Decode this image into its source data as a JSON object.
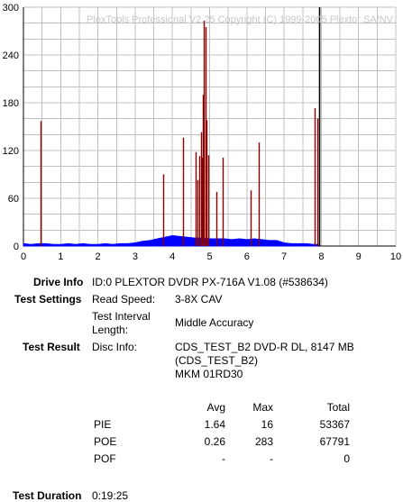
{
  "chart_data": {
    "type": "bar",
    "watermark": "PlexTools Professional V2.25 Copyright (C) 1999-2005 Plextor SA/NV",
    "x_ticks": [
      "0",
      "1",
      "2",
      "3",
      "4",
      "5",
      "6",
      "7",
      "8",
      "9",
      "10"
    ],
    "y_ticks": [
      "0",
      "60",
      "120",
      "180",
      "240",
      "300"
    ],
    "xlim": [
      0,
      10
    ],
    "ylim": [
      0,
      300
    ],
    "grid": true,
    "colors": {
      "pie": "#0000ff",
      "poe": "#8b0000",
      "end_marker": "#000000",
      "grid": "#c0c0c0"
    },
    "series": [
      {
        "key": "poe",
        "x": [
          0.45,
          3.75,
          4.28,
          4.62,
          4.68,
          4.72,
          4.76,
          4.79,
          4.81,
          4.85,
          4.88,
          4.92,
          4.96,
          5.17,
          5.36,
          6.1,
          6.32,
          7.82,
          7.9
        ],
        "values": [
          157,
          90,
          136,
          118,
          83,
          113,
          143,
          111,
          190,
          283,
          275,
          158,
          114,
          68,
          111,
          70,
          130,
          173,
          160
        ]
      },
      {
        "key": "pie",
        "x": [
          0.0,
          0.2,
          0.4,
          0.6,
          0.8,
          1.0,
          1.2,
          1.4,
          1.6,
          1.8,
          2.0,
          2.2,
          2.4,
          2.6,
          2.8,
          3.0,
          3.2,
          3.4,
          3.6,
          3.8,
          4.0,
          4.2,
          4.4,
          4.6,
          4.8,
          5.0,
          5.2,
          5.4,
          5.6,
          5.8,
          6.0,
          6.2,
          6.4,
          6.6,
          6.8,
          7.0,
          7.2,
          7.4,
          7.6,
          7.8,
          7.95
        ],
        "values": [
          3,
          2,
          3,
          3,
          2,
          2,
          3,
          2,
          3,
          2,
          2,
          3,
          2,
          3,
          3,
          4,
          6,
          7,
          9,
          11,
          13,
          12,
          11,
          10,
          10,
          9,
          9,
          9,
          8,
          9,
          8,
          9,
          8,
          7,
          7,
          4,
          3,
          3,
          3,
          2,
          2
        ]
      }
    ],
    "end_marker_x": 7.95
  },
  "drive_info": {
    "label": "Drive Info",
    "value": "ID:0 PLEXTOR DVDR PX-716A V1.08 (#538634)"
  },
  "test_settings": {
    "label": "Test Settings",
    "read_speed_label": "Read Speed:",
    "read_speed_value": "3-8X CAV",
    "interval_label_line1": "Test Interval",
    "interval_label_line2": "Length:",
    "interval_value": "Middle Accuracy"
  },
  "test_result": {
    "label": "Test Result",
    "disc_info_label": "Disc Info:",
    "disc_line1": "CDS_TEST_B2 DVD-R DL, 8147 MB",
    "disc_line2": "(CDS_TEST_B2)",
    "disc_line3": "MKM 01RD30"
  },
  "stats": {
    "headers": {
      "avg": "Avg",
      "max": "Max",
      "total": "Total"
    },
    "rows": [
      {
        "name": "PIE",
        "avg": "1.64",
        "max": "16",
        "total": "53367"
      },
      {
        "name": "POE",
        "avg": "0.26",
        "max": "283",
        "total": "67791"
      },
      {
        "name": "POF",
        "avg": "-",
        "max": "-",
        "total": "0"
      }
    ]
  },
  "duration": {
    "label": "Test Duration",
    "value": "0:19:25"
  }
}
